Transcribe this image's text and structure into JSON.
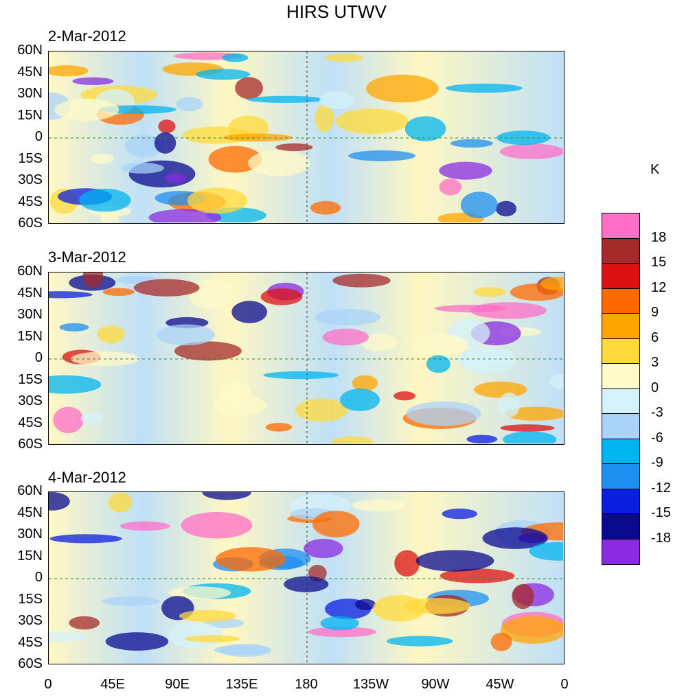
{
  "chart_data": {
    "type": "heatmap",
    "title": "HIRS UTWV",
    "colorbar_unit": "K",
    "panels": [
      {
        "date": "2-Mar-2012"
      },
      {
        "date": "3-Mar-2012"
      },
      {
        "date": "4-Mar-2012"
      }
    ],
    "y_tick_labels": [
      "60N",
      "45N",
      "30N",
      "15N",
      "0",
      "15S",
      "30S",
      "45S",
      "60S"
    ],
    "y_ticks_deg": [
      60,
      45,
      30,
      15,
      0,
      -15,
      -30,
      -45,
      -60
    ],
    "ylim": [
      -60,
      60
    ],
    "x_tick_labels": [
      "0",
      "45E",
      "90E",
      "135E",
      "180",
      "135W",
      "90W",
      "45W",
      "0"
    ],
    "x_ticks_deg": [
      0,
      45,
      90,
      135,
      180,
      225,
      270,
      315,
      360
    ],
    "xlim": [
      0,
      360
    ],
    "colorbar_labels": [
      "18",
      "15",
      "12",
      "9",
      "6",
      "3",
      "0",
      "-3",
      "-6",
      "-9",
      "-12",
      "-15",
      "-18"
    ],
    "colorbar_colors": [
      "#ff6ec7",
      "#a52a2a",
      "#dd1111",
      "#ff6a00",
      "#ffa500",
      "#ffd93b",
      "#fffac8",
      "#d4f2fb",
      "#a9d3f8",
      "#00b4f0",
      "#1e8ff0",
      "#0a1ee0",
      "#0a0a8f",
      "#8a2be2"
    ]
  }
}
